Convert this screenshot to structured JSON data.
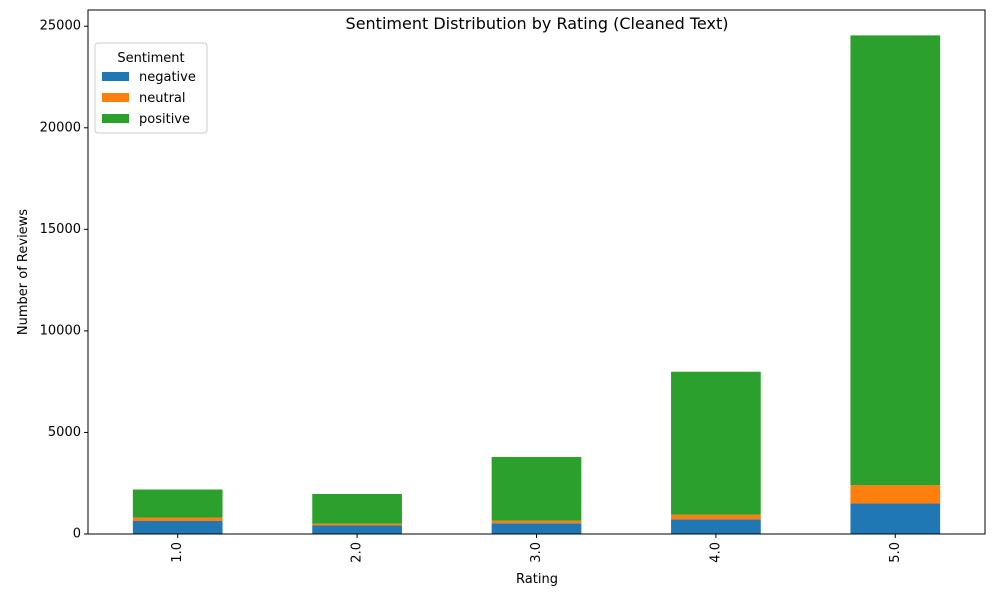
{
  "chart_data": {
    "type": "bar",
    "stacked": true,
    "title": "Sentiment Distribution by Rating (Cleaned Text)",
    "xlabel": "Rating",
    "ylabel": "Number of Reviews",
    "categories": [
      "1.0",
      "2.0",
      "3.0",
      "4.0",
      "5.0"
    ],
    "ylim": [
      0,
      25800
    ],
    "yticks": [
      0,
      5000,
      10000,
      15000,
      20000,
      25000
    ],
    "grid": false,
    "legend": {
      "title": "Sentiment",
      "placement": "top-left"
    },
    "series": [
      {
        "name": "negative",
        "color": "#1f77b4",
        "values": [
          640,
          420,
          530,
          720,
          1500
        ]
      },
      {
        "name": "neutral",
        "color": "#ff7f0e",
        "values": [
          170,
          90,
          130,
          230,
          900
        ]
      },
      {
        "name": "positive",
        "color": "#2ca02c",
        "values": [
          1380,
          1460,
          3130,
          7040,
          22150
        ]
      }
    ]
  }
}
